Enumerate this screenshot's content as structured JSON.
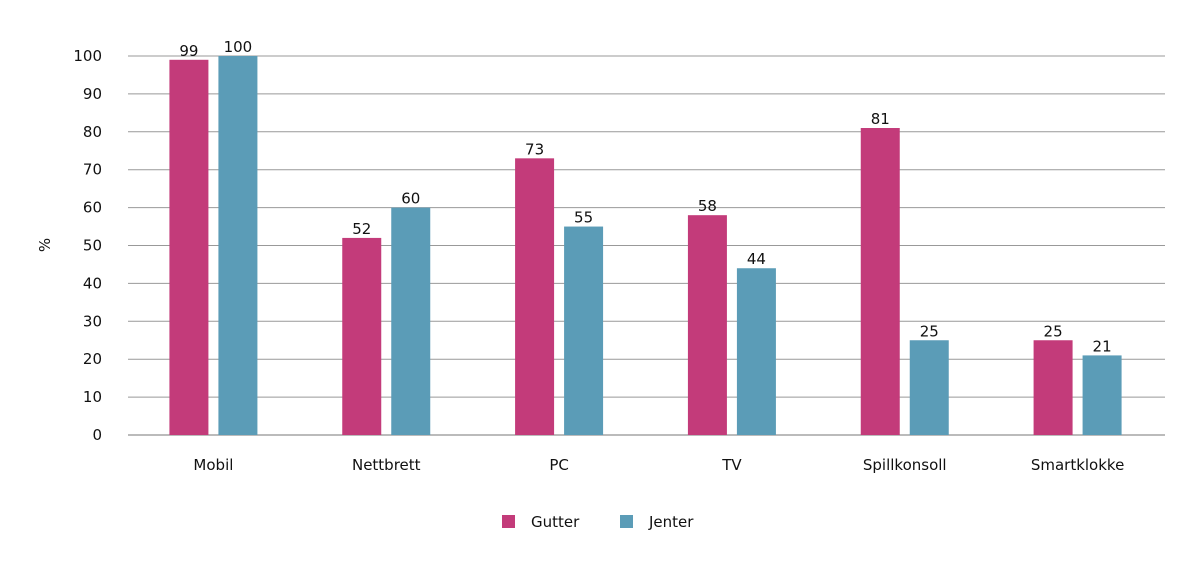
{
  "chart_data": {
    "type": "bar",
    "title": "",
    "xlabel": "",
    "ylabel": "%",
    "ylim": [
      0,
      100
    ],
    "yticks": [
      0,
      10,
      20,
      30,
      40,
      50,
      60,
      70,
      80,
      90,
      100
    ],
    "grid": true,
    "legend_placement": "bottom",
    "categories": [
      "Mobil",
      "Nettbrett",
      "PC",
      "TV",
      "Spillkonsoll",
      "Smartklokke"
    ],
    "series": [
      {
        "name": "Gutter",
        "color": "#c33b7a",
        "values": [
          99,
          52,
          73,
          58,
          81,
          25
        ]
      },
      {
        "name": "Jenter",
        "color": "#5b9cb7",
        "values": [
          100,
          60,
          55,
          44,
          25,
          21
        ]
      }
    ]
  }
}
